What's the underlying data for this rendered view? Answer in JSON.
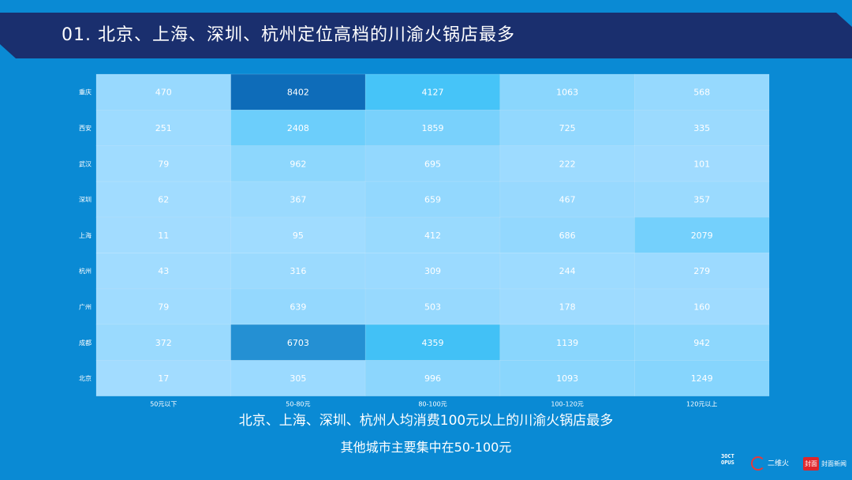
{
  "header": {
    "title": "01. 北京、上海、深圳、杭州定位高档的川渝火锅店最多"
  },
  "captions": {
    "line1": "北京、上海、深圳、杭州人均消费100元以上的川渝火锅店最多",
    "line2": "其他城市主要集中在50-100元"
  },
  "colors": {
    "background": "#0a8ad4",
    "banner": "#1a2f6e",
    "low": "#a2dcff",
    "mid": "#44c4f8",
    "high": "#0e6cb9",
    "cell_text": "#ffffff"
  },
  "logos": {
    "octopus": "3OCT OPUS",
    "erwei": "二维火",
    "fengmian_box": "封面",
    "fengmian_text": "封面新闻"
  },
  "chart_data": {
    "type": "heatmap",
    "title": "",
    "xlabel": "",
    "ylabel": "",
    "x": [
      "50元以下",
      "50-80元",
      "80-100元",
      "100-120元",
      "120元以上"
    ],
    "y": [
      "重庆",
      "西安",
      "武汉",
      "深圳",
      "上海",
      "杭州",
      "广州",
      "成都",
      "北京"
    ],
    "values": [
      [
        470,
        8402,
        4127,
        1063,
        568
      ],
      [
        251,
        2408,
        1859,
        725,
        335
      ],
      [
        79,
        962,
        695,
        222,
        101
      ],
      [
        62,
        367,
        659,
        467,
        357
      ],
      [
        11,
        95,
        412,
        686,
        2079
      ],
      [
        43,
        316,
        309,
        244,
        279
      ],
      [
        79,
        639,
        503,
        178,
        160
      ],
      [
        372,
        6703,
        4359,
        1139,
        942
      ],
      [
        17,
        305,
        996,
        1093,
        1249
      ]
    ],
    "grid": true,
    "legend": "none"
  }
}
